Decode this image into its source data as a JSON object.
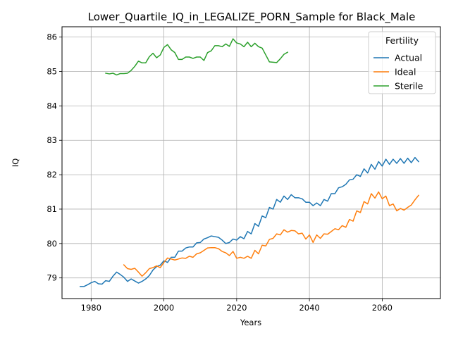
{
  "chart_data": {
    "type": "line",
    "title": "Lower_Quartile_IQ_in_LEGALIZE_PORN_Sample for Black_Male",
    "xlabel": "Years",
    "ylabel": "IQ",
    "xlim": [
      1972,
      2076
    ],
    "ylim": [
      78.4,
      86.3
    ],
    "xticks": [
      1980,
      2000,
      2020,
      2040,
      2060
    ],
    "yticks": [
      79,
      80,
      81,
      82,
      83,
      84,
      85,
      86
    ],
    "grid": true,
    "legend": {
      "title": "Fertility",
      "position": "top-right"
    },
    "series": [
      {
        "name": "Actual",
        "color": "#1f77b4",
        "x": [
          1977,
          1978,
          1979,
          1980,
          1981,
          1982,
          1983,
          1984,
          1985,
          1986,
          1987,
          1988,
          1989,
          1990,
          1991,
          1992,
          1993,
          1994,
          1995,
          1996,
          1997,
          1998,
          1999,
          2000,
          2001,
          2002,
          2003,
          2004,
          2005,
          2006,
          2007,
          2008,
          2009,
          2010,
          2011,
          2012,
          2013,
          2014,
          2015,
          2016,
          2017,
          2018,
          2019,
          2020,
          2021,
          2022,
          2023,
          2024,
          2025,
          2026,
          2027,
          2028,
          2029,
          2030,
          2031,
          2032,
          2033,
          2034,
          2035,
          2036,
          2037,
          2038,
          2039,
          2040,
          2041,
          2042,
          2043,
          2044,
          2045,
          2046,
          2047,
          2048,
          2049,
          2050,
          2051,
          2052,
          2053,
          2054,
          2055,
          2056,
          2057,
          2058,
          2059,
          2060,
          2061,
          2062,
          2063,
          2064,
          2065,
          2066,
          2067,
          2068,
          2069,
          2070
        ],
        "y": [
          78.75,
          78.75,
          78.8,
          78.86,
          78.9,
          78.83,
          78.82,
          78.92,
          78.9,
          79.05,
          79.17,
          79.1,
          79.02,
          78.9,
          78.97,
          78.91,
          78.85,
          78.9,
          78.97,
          79.07,
          79.23,
          79.33,
          79.37,
          79.5,
          79.45,
          79.6,
          79.6,
          79.78,
          79.78,
          79.87,
          79.9,
          79.9,
          80.02,
          80.03,
          80.13,
          80.17,
          80.22,
          80.2,
          80.18,
          80.1,
          80.0,
          80.03,
          80.13,
          80.1,
          80.2,
          80.14,
          80.35,
          80.28,
          80.58,
          80.5,
          80.8,
          80.75,
          81.05,
          81.0,
          81.28,
          81.2,
          81.38,
          81.28,
          81.42,
          81.33,
          81.33,
          81.3,
          81.2,
          81.2,
          81.1,
          81.18,
          81.1,
          81.28,
          81.23,
          81.45,
          81.45,
          81.62,
          81.65,
          81.72,
          81.85,
          81.87,
          82.0,
          81.95,
          82.17,
          82.05,
          82.3,
          82.16,
          82.38,
          82.25,
          82.45,
          82.3,
          82.45,
          82.33,
          82.47,
          82.33,
          82.48,
          82.35,
          82.5,
          82.38
        ]
      },
      {
        "name": "Ideal",
        "color": "#ff7f0e",
        "x": [
          1989,
          1990,
          1991,
          1992,
          1993,
          1994,
          1995,
          1996,
          1997,
          1998,
          1999,
          2000,
          2001,
          2002,
          2003,
          2004,
          2005,
          2006,
          2007,
          2008,
          2009,
          2010,
          2011,
          2012,
          2013,
          2014,
          2015,
          2016,
          2017,
          2018,
          2019,
          2020,
          2021,
          2022,
          2023,
          2024,
          2025,
          2026,
          2027,
          2028,
          2029,
          2030,
          2031,
          2032,
          2033,
          2034,
          2035,
          2036,
          2037,
          2038,
          2039,
          2040,
          2041,
          2042,
          2043,
          2044,
          2045,
          2046,
          2047,
          2048,
          2049,
          2050,
          2051,
          2052,
          2053,
          2054,
          2055,
          2056,
          2057,
          2058,
          2059,
          2060,
          2061,
          2062,
          2063,
          2064,
          2065,
          2066,
          2067,
          2068,
          2069,
          2070
        ],
        "y": [
          79.38,
          79.27,
          79.25,
          79.28,
          79.17,
          79.05,
          79.15,
          79.27,
          79.3,
          79.35,
          79.3,
          79.45,
          79.58,
          79.55,
          79.52,
          79.55,
          79.58,
          79.57,
          79.63,
          79.6,
          79.7,
          79.73,
          79.8,
          79.87,
          79.88,
          79.88,
          79.85,
          79.77,
          79.73,
          79.65,
          79.77,
          79.57,
          79.6,
          79.57,
          79.63,
          79.57,
          79.8,
          79.7,
          79.95,
          79.93,
          80.12,
          80.15,
          80.28,
          80.25,
          80.4,
          80.33,
          80.38,
          80.37,
          80.28,
          80.3,
          80.13,
          80.25,
          80.03,
          80.25,
          80.15,
          80.28,
          80.27,
          80.35,
          80.43,
          80.4,
          80.52,
          80.47,
          80.7,
          80.65,
          80.95,
          80.9,
          81.22,
          81.15,
          81.45,
          81.32,
          81.5,
          81.3,
          81.38,
          81.1,
          81.15,
          80.95,
          81.02,
          80.97,
          81.05,
          81.12,
          81.27,
          81.4
        ]
      },
      {
        "name": "Sterile",
        "color": "#2ca02c",
        "x": [
          1984,
          1985,
          1986,
          1987,
          1988,
          1989,
          1990,
          1991,
          1992,
          1993,
          1994,
          1995,
          1996,
          1997,
          1998,
          1999,
          2000,
          2001,
          2002,
          2003,
          2004,
          2005,
          2006,
          2007,
          2008,
          2009,
          2010,
          2011,
          2012,
          2013,
          2014,
          2015,
          2016,
          2017,
          2018,
          2019,
          2020,
          2021,
          2022,
          2023,
          2024,
          2025,
          2026,
          2027,
          2028,
          2029,
          2030,
          2031,
          2032,
          2033,
          2034
        ],
        "y": [
          84.95,
          84.93,
          84.95,
          84.9,
          84.94,
          84.94,
          84.95,
          85.03,
          85.15,
          85.3,
          85.25,
          85.25,
          85.43,
          85.53,
          85.4,
          85.48,
          85.7,
          85.78,
          85.63,
          85.55,
          85.35,
          85.35,
          85.42,
          85.42,
          85.38,
          85.42,
          85.42,
          85.32,
          85.55,
          85.6,
          85.75,
          85.75,
          85.72,
          85.8,
          85.73,
          85.95,
          85.83,
          85.8,
          85.72,
          85.85,
          85.72,
          85.82,
          85.72,
          85.68,
          85.48,
          85.28,
          85.27,
          85.26,
          85.37,
          85.5,
          85.56
        ]
      }
    ]
  }
}
